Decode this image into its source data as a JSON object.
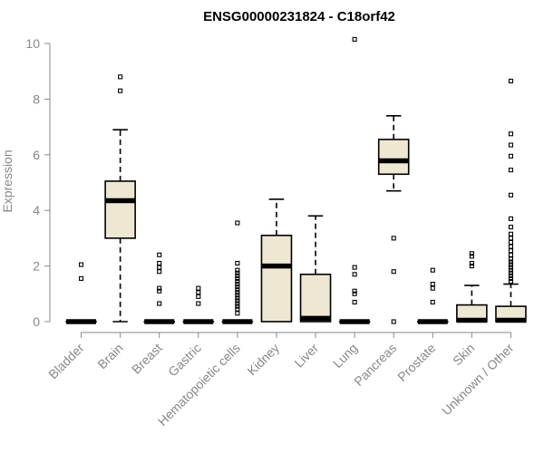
{
  "chart_data": {
    "type": "boxplot",
    "title": "ENSG00000231824 - C18orf42",
    "xlabel": "",
    "ylabel": "Expression",
    "ylim": [
      0,
      10
    ],
    "yticks": [
      0,
      2,
      4,
      6,
      8,
      10
    ],
    "grid": false,
    "box_color": "#EEE8D2",
    "categories": [
      "Bladder",
      "Brain",
      "Breast",
      "Gastric",
      "Hematopoietic cells",
      "Kidney",
      "Liver",
      "Lung",
      "Pancreas",
      "Prostate",
      "Skin",
      "Unknown / Other"
    ],
    "boxes": [
      {
        "min": 0,
        "q1": 0,
        "median": 0,
        "q3": 0,
        "max": 0,
        "outliers": [
          1.55,
          2.05
        ]
      },
      {
        "min": 0,
        "q1": 3.0,
        "median": 4.35,
        "q3": 5.05,
        "max": 6.9,
        "outliers": [
          8.3,
          8.8
        ]
      },
      {
        "min": 0,
        "q1": 0,
        "median": 0,
        "q3": 0,
        "max": 0,
        "outliers": [
          0.65,
          1.1,
          1.2,
          1.8,
          1.95,
          2.1,
          2.4
        ]
      },
      {
        "min": 0,
        "q1": 0,
        "median": 0,
        "q3": 0,
        "max": 0,
        "outliers": [
          0.65,
          0.9,
          1.05,
          1.2
        ]
      },
      {
        "min": 0,
        "q1": 0,
        "median": 0,
        "q3": 0,
        "max": 0,
        "outliers": [
          0.3,
          0.45,
          0.55,
          0.65,
          0.75,
          0.85,
          0.95,
          1.05,
          1.15,
          1.25,
          1.35,
          1.45,
          1.55,
          1.65,
          1.75,
          1.85,
          2.1,
          3.55
        ]
      },
      {
        "min": 0,
        "q1": 0,
        "median": 2.0,
        "q3": 3.1,
        "max": 4.4,
        "outliers": []
      },
      {
        "min": 0,
        "q1": 0,
        "median": 0.12,
        "q3": 1.7,
        "max": 3.8,
        "outliers": []
      },
      {
        "min": 0,
        "q1": 0,
        "median": 0,
        "q3": 0,
        "max": 0,
        "outliers": [
          0.7,
          1.0,
          1.1,
          1.7,
          1.95,
          10.15
        ]
      },
      {
        "min": 4.7,
        "q1": 5.3,
        "median": 5.78,
        "q3": 6.55,
        "max": 7.4,
        "outliers": [
          0,
          1.8,
          3.0
        ]
      },
      {
        "min": 0,
        "q1": 0,
        "median": 0,
        "q3": 0,
        "max": 0,
        "outliers": [
          0.7,
          1.2,
          1.35,
          1.85
        ]
      },
      {
        "min": 0,
        "q1": 0,
        "median": 0.05,
        "q3": 0.6,
        "max": 1.3,
        "outliers": [
          2.0,
          2.1,
          2.35,
          2.45
        ]
      },
      {
        "min": 0,
        "q1": 0,
        "median": 0.05,
        "q3": 0.55,
        "max": 1.35,
        "outliers": [
          1.45,
          1.55,
          1.65,
          1.75,
          1.85,
          1.95,
          2.05,
          2.15,
          2.25,
          2.4,
          2.55,
          2.7,
          2.85,
          3.0,
          3.15,
          3.4,
          3.7,
          4.55,
          5.45,
          5.95,
          6.35,
          6.75,
          8.65
        ]
      }
    ]
  }
}
